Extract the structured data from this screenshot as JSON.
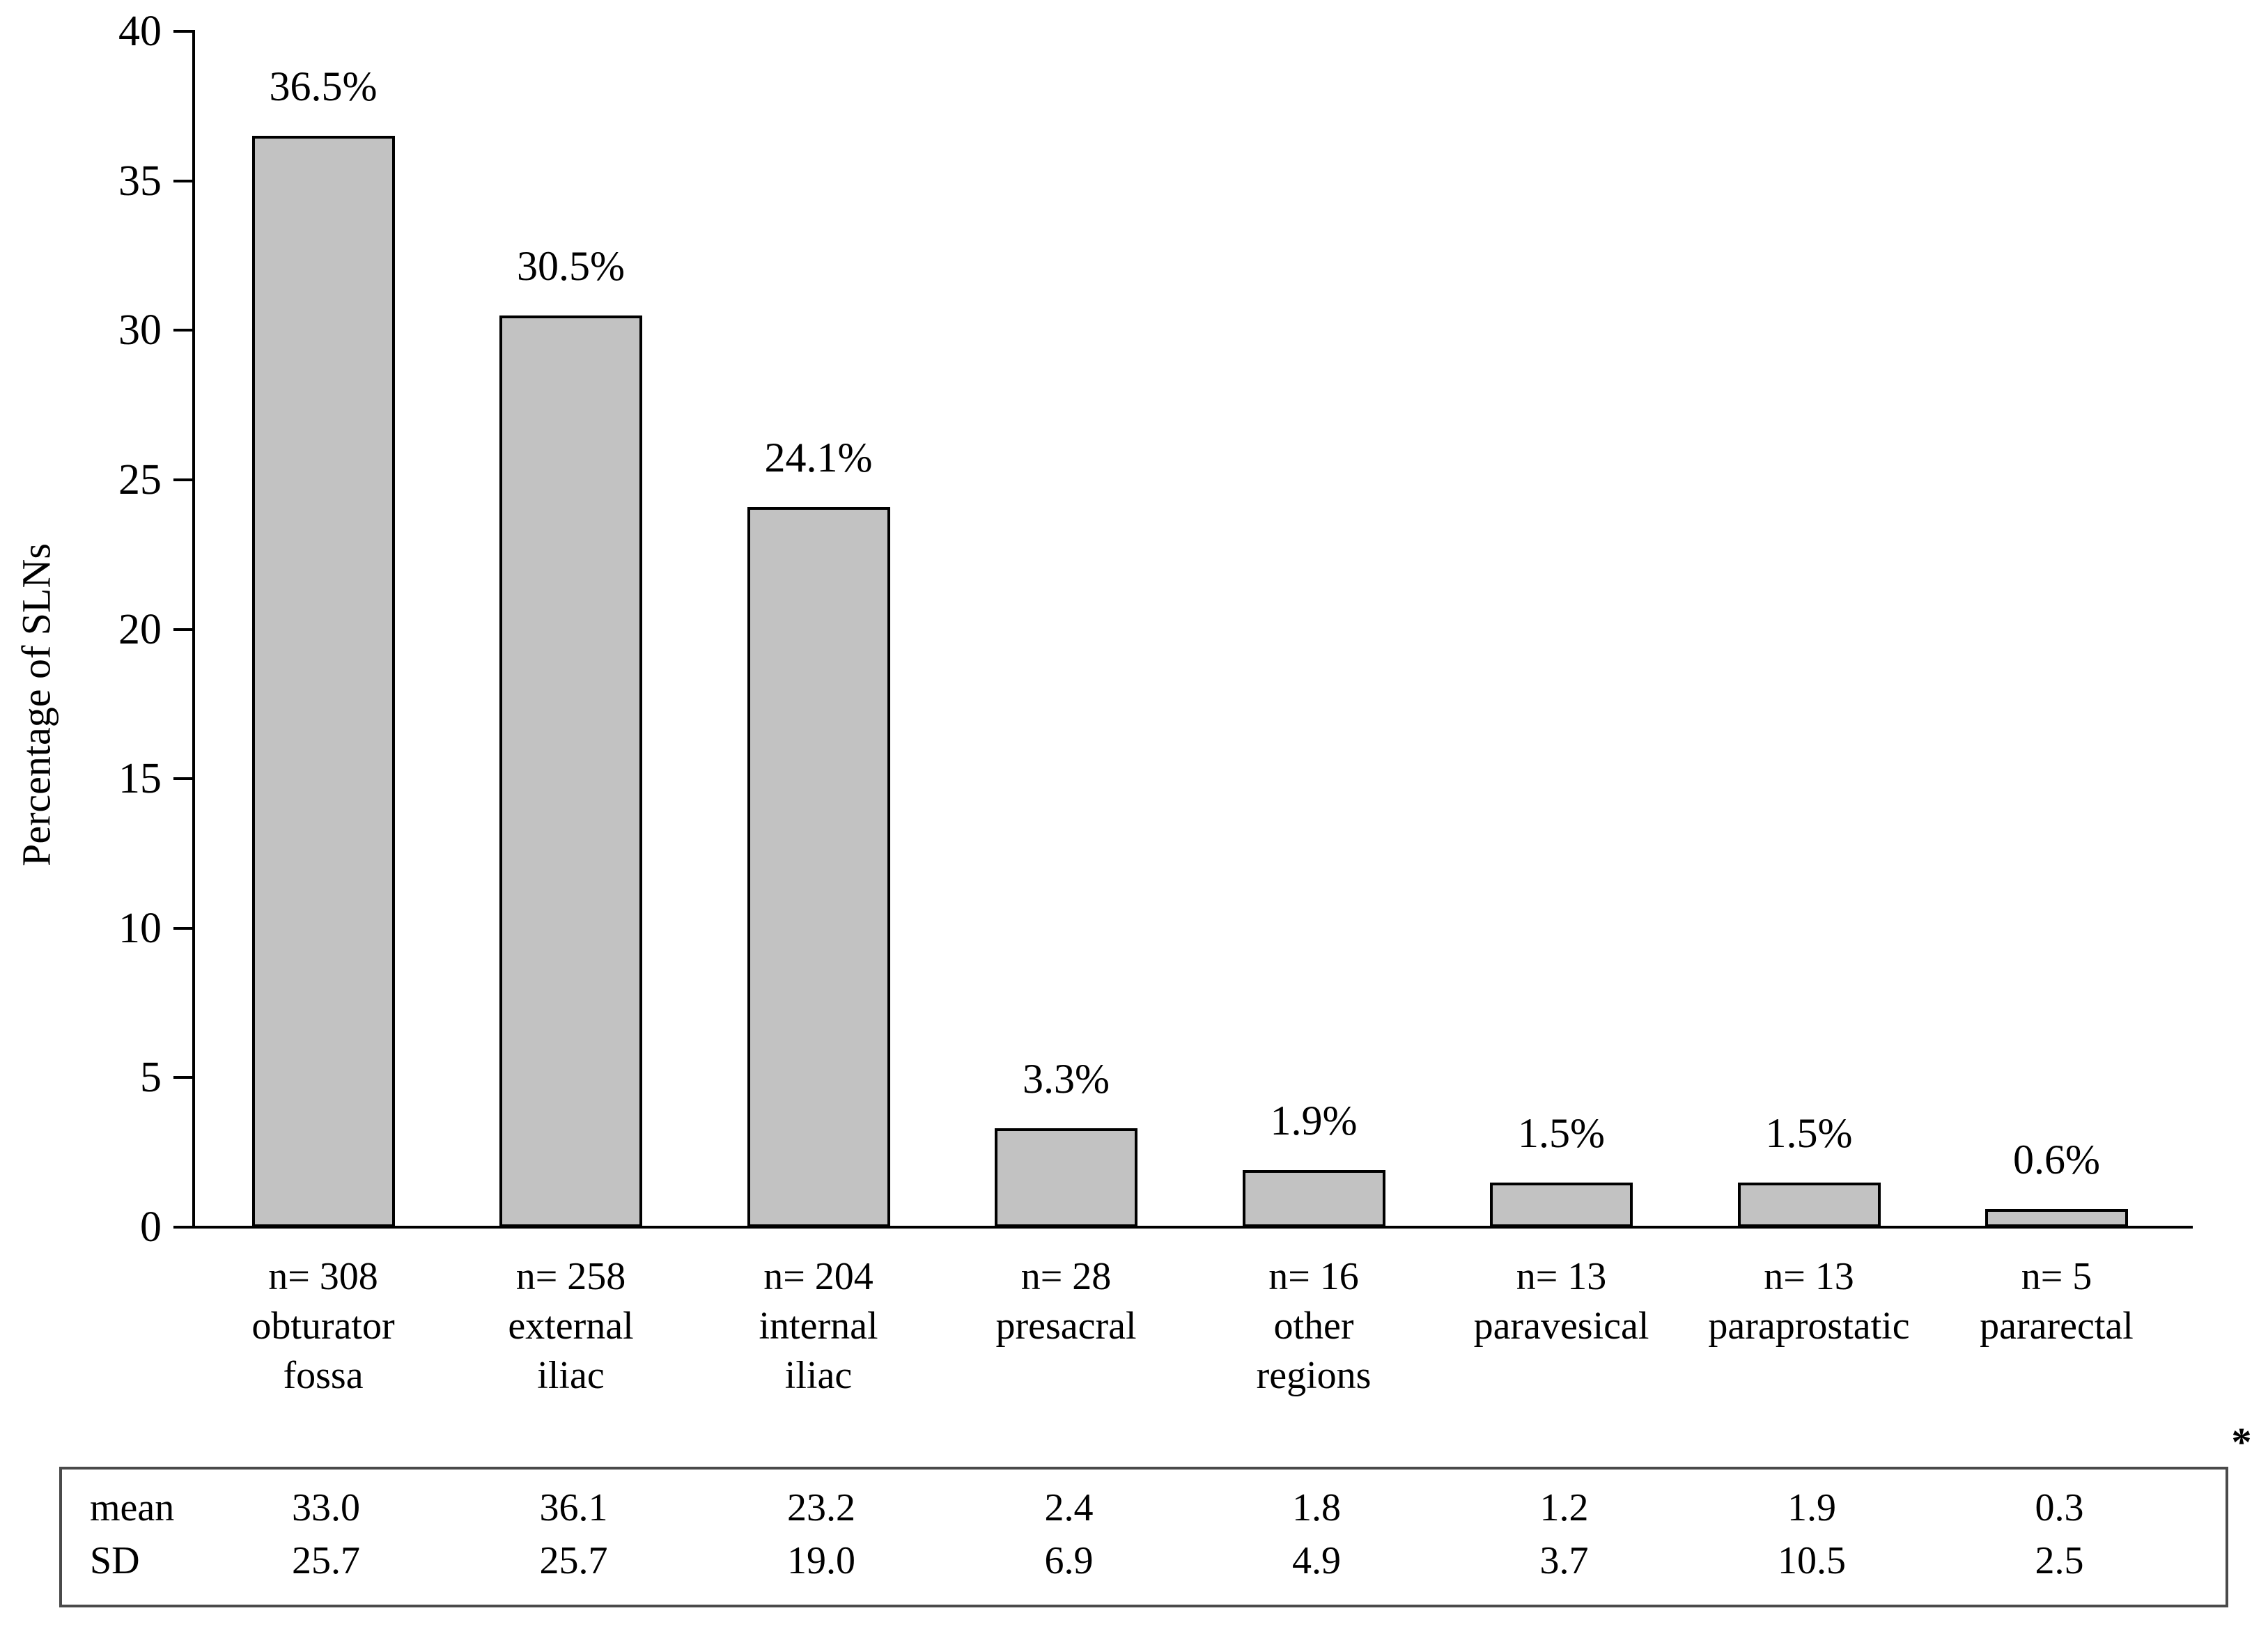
{
  "chart_data": {
    "type": "bar",
    "title": "",
    "xlabel": "",
    "ylabel": "Percentage of SLNs",
    "ylim": [
      0,
      40
    ],
    "yticks": [
      0,
      5,
      10,
      15,
      20,
      25,
      30,
      35,
      40
    ],
    "grid": false,
    "legend_position": "none",
    "bar_fill_color": "#c2c2c2",
    "bar_border_color": "#000000",
    "categories": [
      [
        "n= 308",
        "obturator",
        "fossa"
      ],
      [
        "n= 258",
        "external",
        "iliac"
      ],
      [
        "n= 204",
        "internal",
        "iliac"
      ],
      [
        "n= 28",
        "presacral"
      ],
      [
        "n= 16",
        "other",
        "regions"
      ],
      [
        "n= 13",
        "paravesical"
      ],
      [
        "n= 13",
        "paraprostatic"
      ],
      [
        "n= 5",
        "pararectal"
      ]
    ],
    "values": [
      36.5,
      30.5,
      24.1,
      3.3,
      1.9,
      1.5,
      1.5,
      0.6
    ],
    "value_labels": [
      "36.5%",
      "30.5%",
      "24.1%",
      "3.3%",
      "1.9%",
      "1.5%",
      "1.5%",
      "0.6%"
    ],
    "stats_table": {
      "row_labels": [
        "mean",
        "SD"
      ],
      "rows": [
        [
          "33.0",
          "36.1",
          "23.2",
          "2.4",
          "1.8",
          "1.2",
          "1.9",
          "0.3"
        ],
        [
          "25.7",
          "25.7",
          "19.0",
          "6.9",
          "4.9",
          "3.7",
          "10.5",
          "2.5"
        ]
      ],
      "footnote_marker": "*"
    }
  }
}
